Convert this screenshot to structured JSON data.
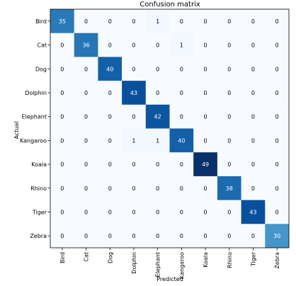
{
  "chart_data": {
    "type": "heatmap",
    "title": "Confusion matrix",
    "xlabel": "Predicted",
    "ylabel": "Actual",
    "x_categories": [
      "Bird",
      "Cat",
      "Dog",
      "Dolphin",
      "Elephant",
      "Kangaroo",
      "Koala",
      "Rhino",
      "Tiger",
      "Zebra"
    ],
    "y_categories": [
      "Bird",
      "Cat",
      "Dog",
      "Dolphin",
      "Elephant",
      "Kangaroo",
      "Koala",
      "Rhino",
      "Tiger",
      "Zebra"
    ],
    "values": [
      [
        35,
        0,
        0,
        0,
        1,
        0,
        0,
        0,
        0,
        0
      ],
      [
        0,
        36,
        0,
        0,
        0,
        1,
        0,
        0,
        0,
        0
      ],
      [
        0,
        0,
        40,
        0,
        0,
        0,
        0,
        0,
        0,
        0
      ],
      [
        0,
        0,
        0,
        43,
        0,
        0,
        0,
        0,
        0,
        0
      ],
      [
        0,
        0,
        0,
        0,
        42,
        0,
        0,
        0,
        0,
        0
      ],
      [
        0,
        0,
        0,
        1,
        1,
        40,
        0,
        0,
        0,
        0
      ],
      [
        0,
        0,
        0,
        0,
        0,
        0,
        49,
        0,
        0,
        0
      ],
      [
        0,
        0,
        0,
        0,
        0,
        0,
        0,
        38,
        0,
        0
      ],
      [
        0,
        0,
        0,
        0,
        0,
        0,
        0,
        0,
        43,
        0
      ],
      [
        0,
        0,
        0,
        0,
        0,
        0,
        0,
        0,
        0,
        30
      ]
    ],
    "colormap": "Blues",
    "value_range": [
      0,
      49
    ],
    "grid": false,
    "legend": "none",
    "colors": {
      "low": "#f7fbff",
      "high": "#08306b",
      "text_dark": "#000000",
      "text_light": "#ffffff"
    }
  }
}
